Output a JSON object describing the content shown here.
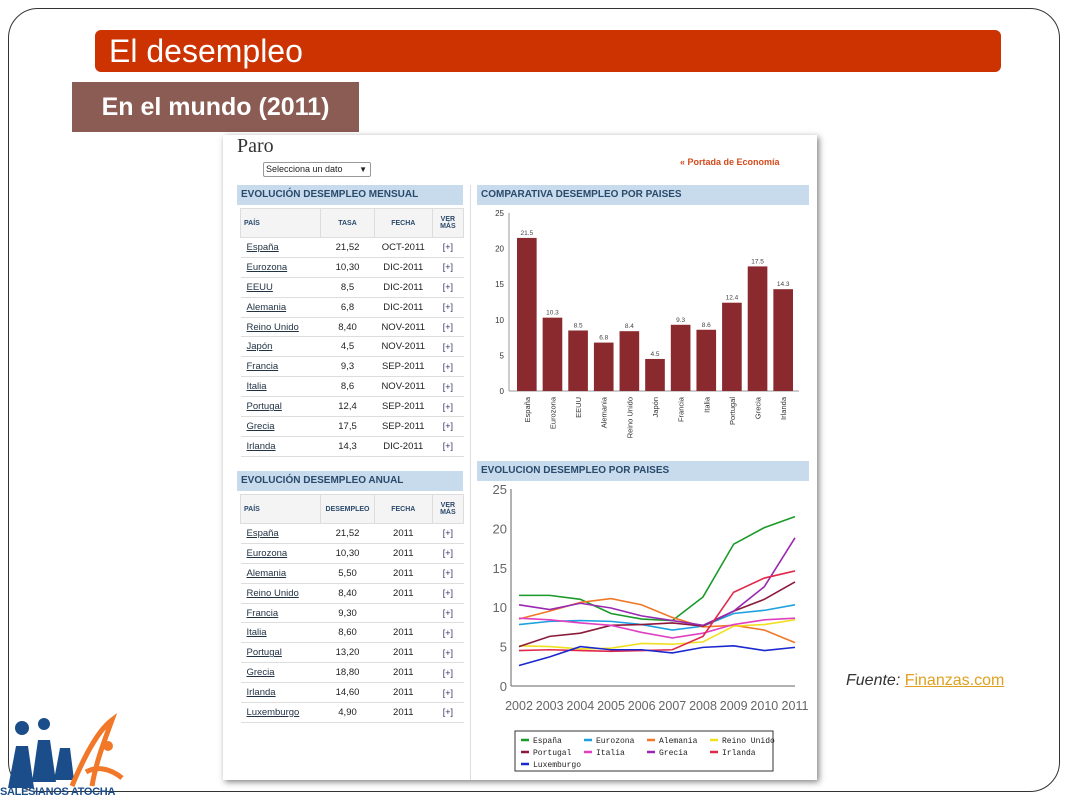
{
  "slide": {
    "title": "El desempleo",
    "subtitle": "En el mundo (2011)",
    "source_label": "Fuente",
    "source_link": "Finanzas.com",
    "logo_text": "SALESIANOS ATOCHA"
  },
  "page": {
    "heading": "Paro",
    "select_value": "Selecciona un dato",
    "portada_link": "« Portada de Economía"
  },
  "monthly": {
    "title": "EVOLUCIÓN DESEMPLEO MENSUAL",
    "headers": [
      "PAÍS",
      "TASA",
      "FECHA",
      "VER MÁS"
    ],
    "rows": [
      [
        "España",
        "21,52",
        "OCT-2011",
        "[+]"
      ],
      [
        "Eurozona",
        "10,30",
        "DIC-2011",
        "[+]"
      ],
      [
        "EEUU",
        "8,5",
        "DIC-2011",
        "[+]"
      ],
      [
        "Alemania",
        "6,8",
        "DIC-2011",
        "[+]"
      ],
      [
        "Reino Unido",
        "8,40",
        "NOV-2011",
        "[+]"
      ],
      [
        "Japón",
        "4,5",
        "NOV-2011",
        "[+]"
      ],
      [
        "Francia",
        "9,3",
        "SEP-2011",
        "[+]"
      ],
      [
        "Italia",
        "8,6",
        "NOV-2011",
        "[+]"
      ],
      [
        "Portugal",
        "12,4",
        "SEP-2011",
        "[+]"
      ],
      [
        "Grecia",
        "17,5",
        "SEP-2011",
        "[+]"
      ],
      [
        "Irlanda",
        "14,3",
        "DIC-2011",
        "[+]"
      ]
    ]
  },
  "annual": {
    "title": "EVOLUCIÓN DESEMPLEO ANUAL",
    "headers": [
      "PAÍS",
      "DESEMPLEO",
      "FECHA",
      "VER MÁS"
    ],
    "rows": [
      [
        "España",
        "21,52",
        "2011",
        "[+]"
      ],
      [
        "Eurozona",
        "10,30",
        "2011",
        "[+]"
      ],
      [
        "Alemania",
        "5,50",
        "2011",
        "[+]"
      ],
      [
        "Reino Unido",
        "8,40",
        "2011",
        "[+]"
      ],
      [
        "Francia",
        "9,30",
        "",
        "[+]"
      ],
      [
        "Italia",
        "8,60",
        "2011",
        "[+]"
      ],
      [
        "Portugal",
        "13,20",
        "2011",
        "[+]"
      ],
      [
        "Grecia",
        "18,80",
        "2011",
        "[+]"
      ],
      [
        "Irlanda",
        "14,60",
        "2011",
        "[+]"
      ],
      [
        "Luxemburgo",
        "4,90",
        "2011",
        "[+]"
      ]
    ]
  },
  "chart_data": [
    {
      "type": "bar",
      "title": "COMPARATIVA DESEMPLEO POR PAISES",
      "categories": [
        "España",
        "Eurozona",
        "EEUU",
        "Alemania",
        "Reino Unido",
        "Japón",
        "Francia",
        "Italia",
        "Portugal",
        "Grecia",
        "Irlanda"
      ],
      "values": [
        21.5,
        10.3,
        8.5,
        6.8,
        8.4,
        4.5,
        9.3,
        8.6,
        12.4,
        17.5,
        14.3
      ],
      "value_labels": [
        "21.5",
        "10.3",
        "8.5",
        "6.8",
        "8.4",
        "4.5",
        "9.3",
        "8.6",
        "12.4",
        "17.5",
        "14.3"
      ],
      "ylim": [
        0,
        25
      ],
      "yticks": [
        0,
        5,
        10,
        15,
        20,
        25
      ],
      "color": "#8b2a2e"
    },
    {
      "type": "line",
      "title": "EVOLUCION DESEMPLEO POR PAISES",
      "x": [
        "2002",
        "2003",
        "2004",
        "2005",
        "2006",
        "2007",
        "2008",
        "2009",
        "2010",
        "2011"
      ],
      "ylim": [
        0,
        25
      ],
      "yticks": [
        0,
        5,
        10,
        15,
        20,
        25
      ],
      "series": [
        {
          "name": "España",
          "color": "#1a9a2a",
          "values": [
            11.5,
            11.5,
            11,
            9.2,
            8.5,
            8.3,
            11.3,
            18,
            20.1,
            21.5
          ]
        },
        {
          "name": "Eurozona",
          "color": "#1ea0e0",
          "values": [
            7.8,
            8.2,
            8.3,
            8.2,
            7.8,
            7.1,
            7.6,
            9.2,
            9.6,
            10.3
          ]
        },
        {
          "name": "Alemania",
          "color": "#f07828",
          "values": [
            8.5,
            9.5,
            10.6,
            11.1,
            10.3,
            8.7,
            7.5,
            7.7,
            7.1,
            5.5
          ]
        },
        {
          "name": "Reino Unido",
          "color": "#f0e020",
          "values": [
            5.1,
            5,
            4.7,
            4.8,
            5.4,
            5.3,
            5.6,
            7.6,
            7.8,
            8.4
          ]
        },
        {
          "name": "Portugal",
          "color": "#8b1a3a",
          "values": [
            5,
            6.3,
            6.7,
            7.7,
            7.8,
            8,
            7.6,
            9.5,
            11,
            13.2
          ]
        },
        {
          "name": "Italia",
          "color": "#e040c0",
          "values": [
            8.6,
            8.4,
            8,
            7.7,
            6.8,
            6.1,
            6.7,
            7.8,
            8.4,
            8.6
          ]
        },
        {
          "name": "Grecia",
          "color": "#9a28b0",
          "values": [
            10.3,
            9.7,
            10.5,
            9.9,
            8.9,
            8.3,
            7.7,
            9.5,
            12.6,
            18.8
          ]
        },
        {
          "name": "Irlanda",
          "color": "#e0284a",
          "values": [
            4.5,
            4.6,
            4.5,
            4.4,
            4.5,
            4.6,
            6.3,
            11.9,
            13.7,
            14.6
          ]
        },
        {
          "name": "Luxemburgo",
          "color": "#1a28d0",
          "values": [
            2.6,
            3.7,
            5,
            4.6,
            4.6,
            4.2,
            4.9,
            5.1,
            4.5,
            4.9
          ]
        }
      ]
    }
  ]
}
